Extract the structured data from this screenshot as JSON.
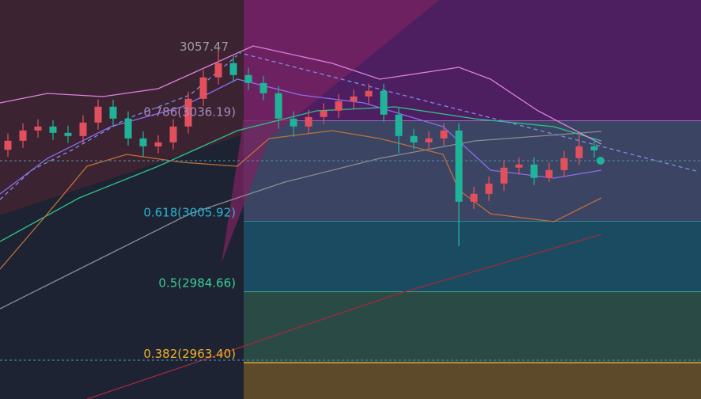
{
  "chart_data": {
    "type": "candlestick",
    "ylim": [
      2952.5,
      3072.6
    ],
    "open": [
      3027.5,
      3030.23,
      3033.33,
      3034.52,
      3032.61,
      3031.66,
      3035.71,
      3040.48,
      3036.9,
      3030.94,
      3028.56,
      3029.75,
      3034.52,
      3042.86,
      3049.3,
      3053.59,
      3050.01,
      3047.63,
      3044.53,
      3036.9,
      3034.52,
      3037.38,
      3039.29,
      3042.14,
      3043.57,
      3045.24,
      3038.09,
      3031.66,
      3029.75,
      3030.94,
      3033.33,
      3011.88,
      3014.26,
      3017.36,
      3022.13,
      3023.08,
      3019.03,
      3021.41,
      3024.99,
      3028.56
    ],
    "high": [
      3032.4,
      3035.5,
      3036.7,
      3036.4,
      3034.8,
      3037.9,
      3042.7,
      3042.6,
      3039.1,
      3033.1,
      3031.9,
      3036.7,
      3045.0,
      3051.5,
      3057.47,
      3055.8,
      3052.2,
      3049.8,
      3046.7,
      3039.1,
      3039.6,
      3041.5,
      3044.3,
      3045.7,
      3047.4,
      3047.4,
      3040.3,
      3033.8,
      3033.1,
      3035.5,
      3035.5,
      3016.4,
      3019.5,
      3024.3,
      3025.2,
      3025.3,
      3023.6,
      3027.2,
      3031.8,
      3030.7
    ],
    "low": [
      3025.4,
      3028.1,
      3031.2,
      3030.5,
      3029.6,
      3029.6,
      3033.6,
      3034.8,
      3028.8,
      3025.5,
      3026.4,
      3027.6,
      3032.4,
      3040.7,
      3047.2,
      3047.9,
      3045.5,
      3042.4,
      3033.8,
      3031.4,
      3032.4,
      3035.2,
      3037.1,
      3040.0,
      3041.4,
      3035.9,
      3026.5,
      3027.6,
      3027.6,
      3028.8,
      2998.5,
      3009.7,
      3012.1,
      3015.2,
      3020.0,
      3016.9,
      3017.9,
      3019.3,
      3022.9,
      3025.2
    ],
    "close": [
      3030.23,
      3033.33,
      3034.52,
      3032.61,
      3031.66,
      3035.71,
      3040.48,
      3036.9,
      3030.94,
      3028.56,
      3029.75,
      3034.52,
      3042.86,
      3049.3,
      3053.59,
      3050.01,
      3047.63,
      3044.53,
      3036.9,
      3034.52,
      3037.38,
      3039.29,
      3042.14,
      3043.57,
      3045.24,
      3038.09,
      3031.66,
      3029.75,
      3030.94,
      3033.33,
      3011.88,
      3014.26,
      3017.36,
      3022.13,
      3023.08,
      3019.03,
      3021.41,
      3024.99,
      3028.56,
      3027.37
    ],
    "up_color": "#e2505e",
    "down_color": "#1fb39a",
    "annotations": [
      {
        "text": "3057.47",
        "value": 3057.47,
        "color": "#9c9aa6"
      }
    ],
    "top_zone_color": "#4d1f60",
    "fib_levels": [
      {
        "label": "0.786(3036.19)",
        "value": 3036.19,
        "color": "#b46ad9",
        "label_color": "#a58bc2",
        "zone_color": "#3b4462"
      },
      {
        "label": "0.618(3005.92)",
        "value": 3005.92,
        "color": "#2aa6b8",
        "label_color": "#2ab4d4",
        "zone_color": "#1b4b60"
      },
      {
        "label": "0.5(2984.66)",
        "value": 2984.66,
        "color": "#3fc59a",
        "label_color": "#3ccf98",
        "zone_color": "#2a4a45"
      },
      {
        "label": "0.382(2963.40)",
        "value": 2963.4,
        "color": "#e0a92a",
        "label_color": "#f0b429",
        "zone_color": "#5d4a2b"
      }
    ]
  }
}
